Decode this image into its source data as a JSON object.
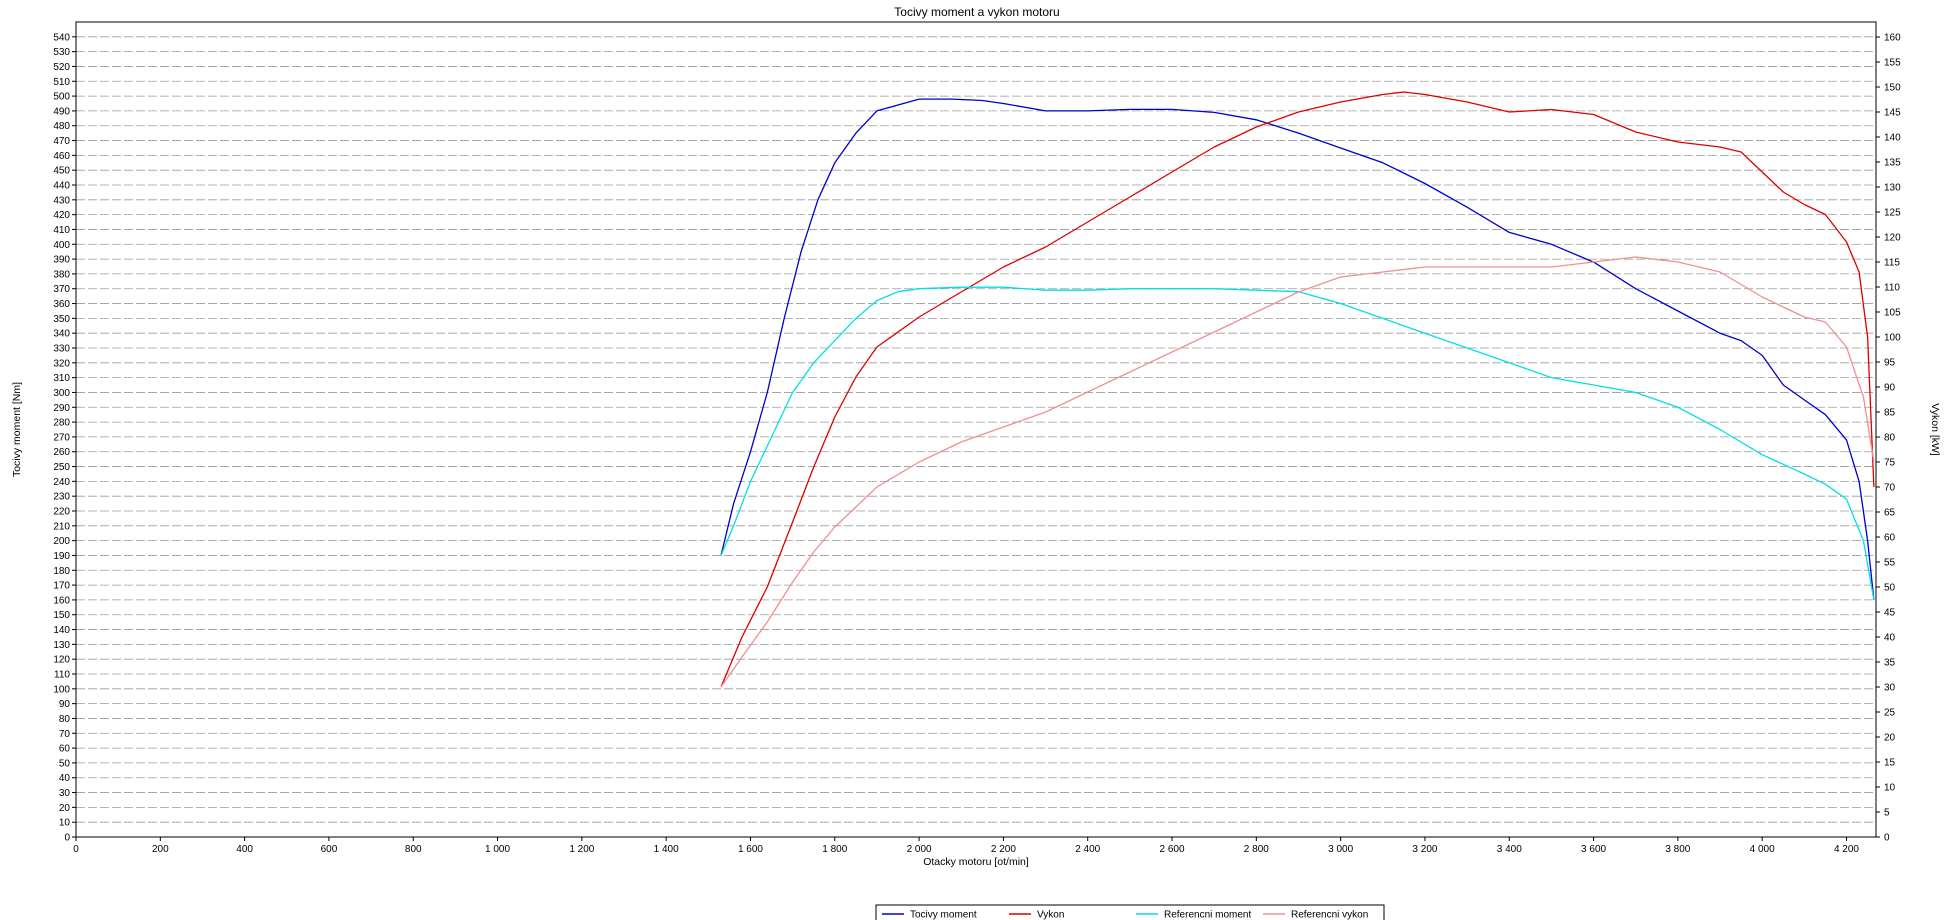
{
  "chart_data": {
    "type": "line",
    "title": "Tocivy moment a vykon motoru",
    "xlabel": "Otacky motoru [ot/min]",
    "ylabel": "Tocivy moment [Nm]",
    "y2label": "Vykon [kW]",
    "xlim": [
      0,
      4270
    ],
    "ylim": [
      0,
      550
    ],
    "y2lim": [
      0,
      163
    ],
    "x_ticks": [
      0,
      200,
      400,
      600,
      800,
      1000,
      1200,
      1400,
      1600,
      1800,
      2000,
      2200,
      2400,
      2600,
      2800,
      3000,
      3200,
      3400,
      3600,
      3800,
      4000,
      4200
    ],
    "x_tick_labels": [
      "0",
      "200",
      "400",
      "600",
      "800",
      "1 000",
      "1 200",
      "1 400",
      "1 600",
      "1 800",
      "2 000",
      "2 200",
      "2 400",
      "2 600",
      "2 800",
      "3 000",
      "3 200",
      "3 400",
      "3 600",
      "3 800",
      "4 000",
      "4 200"
    ],
    "y_ticks_step": 10,
    "y_ticks_max": 540,
    "y2_ticks_step": 5,
    "y2_ticks_max": 160,
    "grid": true,
    "legend_position": "bottom-center",
    "series": [
      {
        "name": "Tocivy moment",
        "axis": "left",
        "color": "#0000cc",
        "points": [
          [
            1530,
            190
          ],
          [
            1560,
            225
          ],
          [
            1600,
            260
          ],
          [
            1640,
            300
          ],
          [
            1680,
            350
          ],
          [
            1720,
            395
          ],
          [
            1760,
            430
          ],
          [
            1800,
            455
          ],
          [
            1850,
            475
          ],
          [
            1900,
            490
          ],
          [
            1950,
            494
          ],
          [
            2000,
            498
          ],
          [
            2080,
            498
          ],
          [
            2150,
            497
          ],
          [
            2200,
            495
          ],
          [
            2300,
            490
          ],
          [
            2400,
            490
          ],
          [
            2500,
            491
          ],
          [
            2600,
            491
          ],
          [
            2700,
            489
          ],
          [
            2800,
            484
          ],
          [
            2900,
            475
          ],
          [
            3000,
            465
          ],
          [
            3100,
            455
          ],
          [
            3200,
            441
          ],
          [
            3300,
            425
          ],
          [
            3400,
            408
          ],
          [
            3500,
            400
          ],
          [
            3600,
            388
          ],
          [
            3700,
            370
          ],
          [
            3800,
            355
          ],
          [
            3900,
            340
          ],
          [
            3950,
            335
          ],
          [
            4000,
            325
          ],
          [
            4050,
            305
          ],
          [
            4100,
            295
          ],
          [
            4150,
            285
          ],
          [
            4200,
            268
          ],
          [
            4230,
            240
          ],
          [
            4250,
            200
          ],
          [
            4265,
            160
          ]
        ]
      },
      {
        "name": "Vykon",
        "axis": "right",
        "color": "#dd0000",
        "points": [
          [
            1530,
            30
          ],
          [
            1580,
            40
          ],
          [
            1640,
            50
          ],
          [
            1700,
            63
          ],
          [
            1750,
            74
          ],
          [
            1800,
            84
          ],
          [
            1850,
            92
          ],
          [
            1900,
            98
          ],
          [
            2000,
            104
          ],
          [
            2100,
            109
          ],
          [
            2200,
            114
          ],
          [
            2300,
            118
          ],
          [
            2400,
            123
          ],
          [
            2500,
            128
          ],
          [
            2600,
            133
          ],
          [
            2700,
            138
          ],
          [
            2800,
            142
          ],
          [
            2900,
            145
          ],
          [
            3000,
            147
          ],
          [
            3100,
            148.5
          ],
          [
            3150,
            149
          ],
          [
            3200,
            148.5
          ],
          [
            3300,
            147
          ],
          [
            3400,
            145
          ],
          [
            3500,
            145.5
          ],
          [
            3600,
            144.5
          ],
          [
            3700,
            141
          ],
          [
            3800,
            139
          ],
          [
            3900,
            138
          ],
          [
            3950,
            137
          ],
          [
            4000,
            133
          ],
          [
            4050,
            129
          ],
          [
            4100,
            126.5
          ],
          [
            4150,
            124.5
          ],
          [
            4200,
            119
          ],
          [
            4230,
            113
          ],
          [
            4250,
            100
          ],
          [
            4265,
            70
          ]
        ]
      },
      {
        "name": "Referencni moment",
        "axis": "left",
        "color": "#00e0e0",
        "points": [
          [
            1530,
            190
          ],
          [
            1560,
            210
          ],
          [
            1600,
            240
          ],
          [
            1650,
            270
          ],
          [
            1700,
            300
          ],
          [
            1750,
            320
          ],
          [
            1800,
            335
          ],
          [
            1850,
            350
          ],
          [
            1900,
            362
          ],
          [
            1950,
            368
          ],
          [
            2000,
            370
          ],
          [
            2100,
            371
          ],
          [
            2200,
            371
          ],
          [
            2300,
            369
          ],
          [
            2400,
            369
          ],
          [
            2500,
            370
          ],
          [
            2600,
            370
          ],
          [
            2700,
            370
          ],
          [
            2800,
            369
          ],
          [
            2900,
            368
          ],
          [
            3000,
            360
          ],
          [
            3100,
            350
          ],
          [
            3200,
            340
          ],
          [
            3300,
            330
          ],
          [
            3400,
            320
          ],
          [
            3500,
            310
          ],
          [
            3600,
            305
          ],
          [
            3700,
            300
          ],
          [
            3800,
            290
          ],
          [
            3900,
            275
          ],
          [
            4000,
            258
          ],
          [
            4100,
            245
          ],
          [
            4150,
            238
          ],
          [
            4200,
            228
          ],
          [
            4240,
            200
          ],
          [
            4265,
            160
          ]
        ]
      },
      {
        "name": "Referencni vykon",
        "axis": "right",
        "color": "#f09090",
        "points": [
          [
            1530,
            30
          ],
          [
            1580,
            36
          ],
          [
            1640,
            43
          ],
          [
            1700,
            51
          ],
          [
            1750,
            57
          ],
          [
            1800,
            62
          ],
          [
            1850,
            66
          ],
          [
            1900,
            70
          ],
          [
            2000,
            75
          ],
          [
            2100,
            79
          ],
          [
            2200,
            82
          ],
          [
            2300,
            85
          ],
          [
            2400,
            89
          ],
          [
            2500,
            93
          ],
          [
            2600,
            97
          ],
          [
            2700,
            101
          ],
          [
            2800,
            105
          ],
          [
            2900,
            109
          ],
          [
            3000,
            112
          ],
          [
            3100,
            113
          ],
          [
            3200,
            114
          ],
          [
            3300,
            114
          ],
          [
            3400,
            114
          ],
          [
            3500,
            114
          ],
          [
            3600,
            115
          ],
          [
            3700,
            116
          ],
          [
            3800,
            115
          ],
          [
            3900,
            113
          ],
          [
            4000,
            108
          ],
          [
            4050,
            106
          ],
          [
            4100,
            104
          ],
          [
            4150,
            103
          ],
          [
            4200,
            98
          ],
          [
            4240,
            88
          ],
          [
            4265,
            75
          ]
        ]
      }
    ]
  }
}
